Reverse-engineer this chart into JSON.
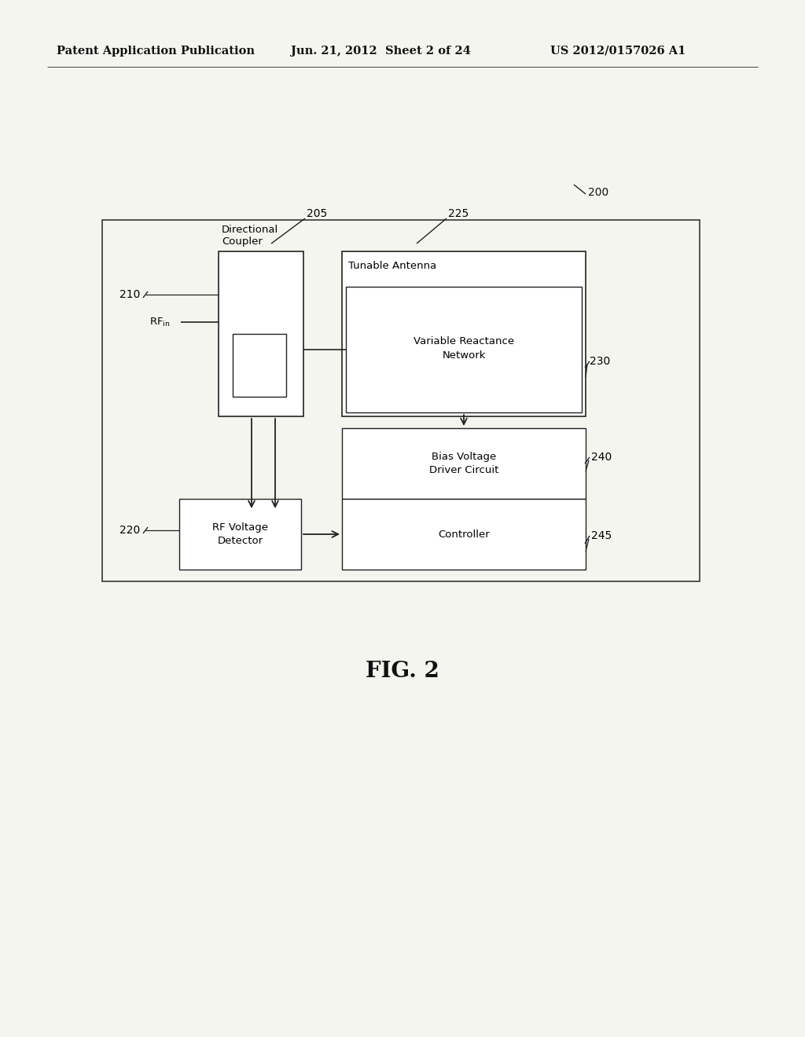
{
  "bg_color": "#f5f5f0",
  "header_text": "Patent Application Publication",
  "header_date": "Jun. 21, 2012  Sheet 2 of 24",
  "header_patent": "US 2012/0157026 A1",
  "fig_label": "FIG. 2"
}
